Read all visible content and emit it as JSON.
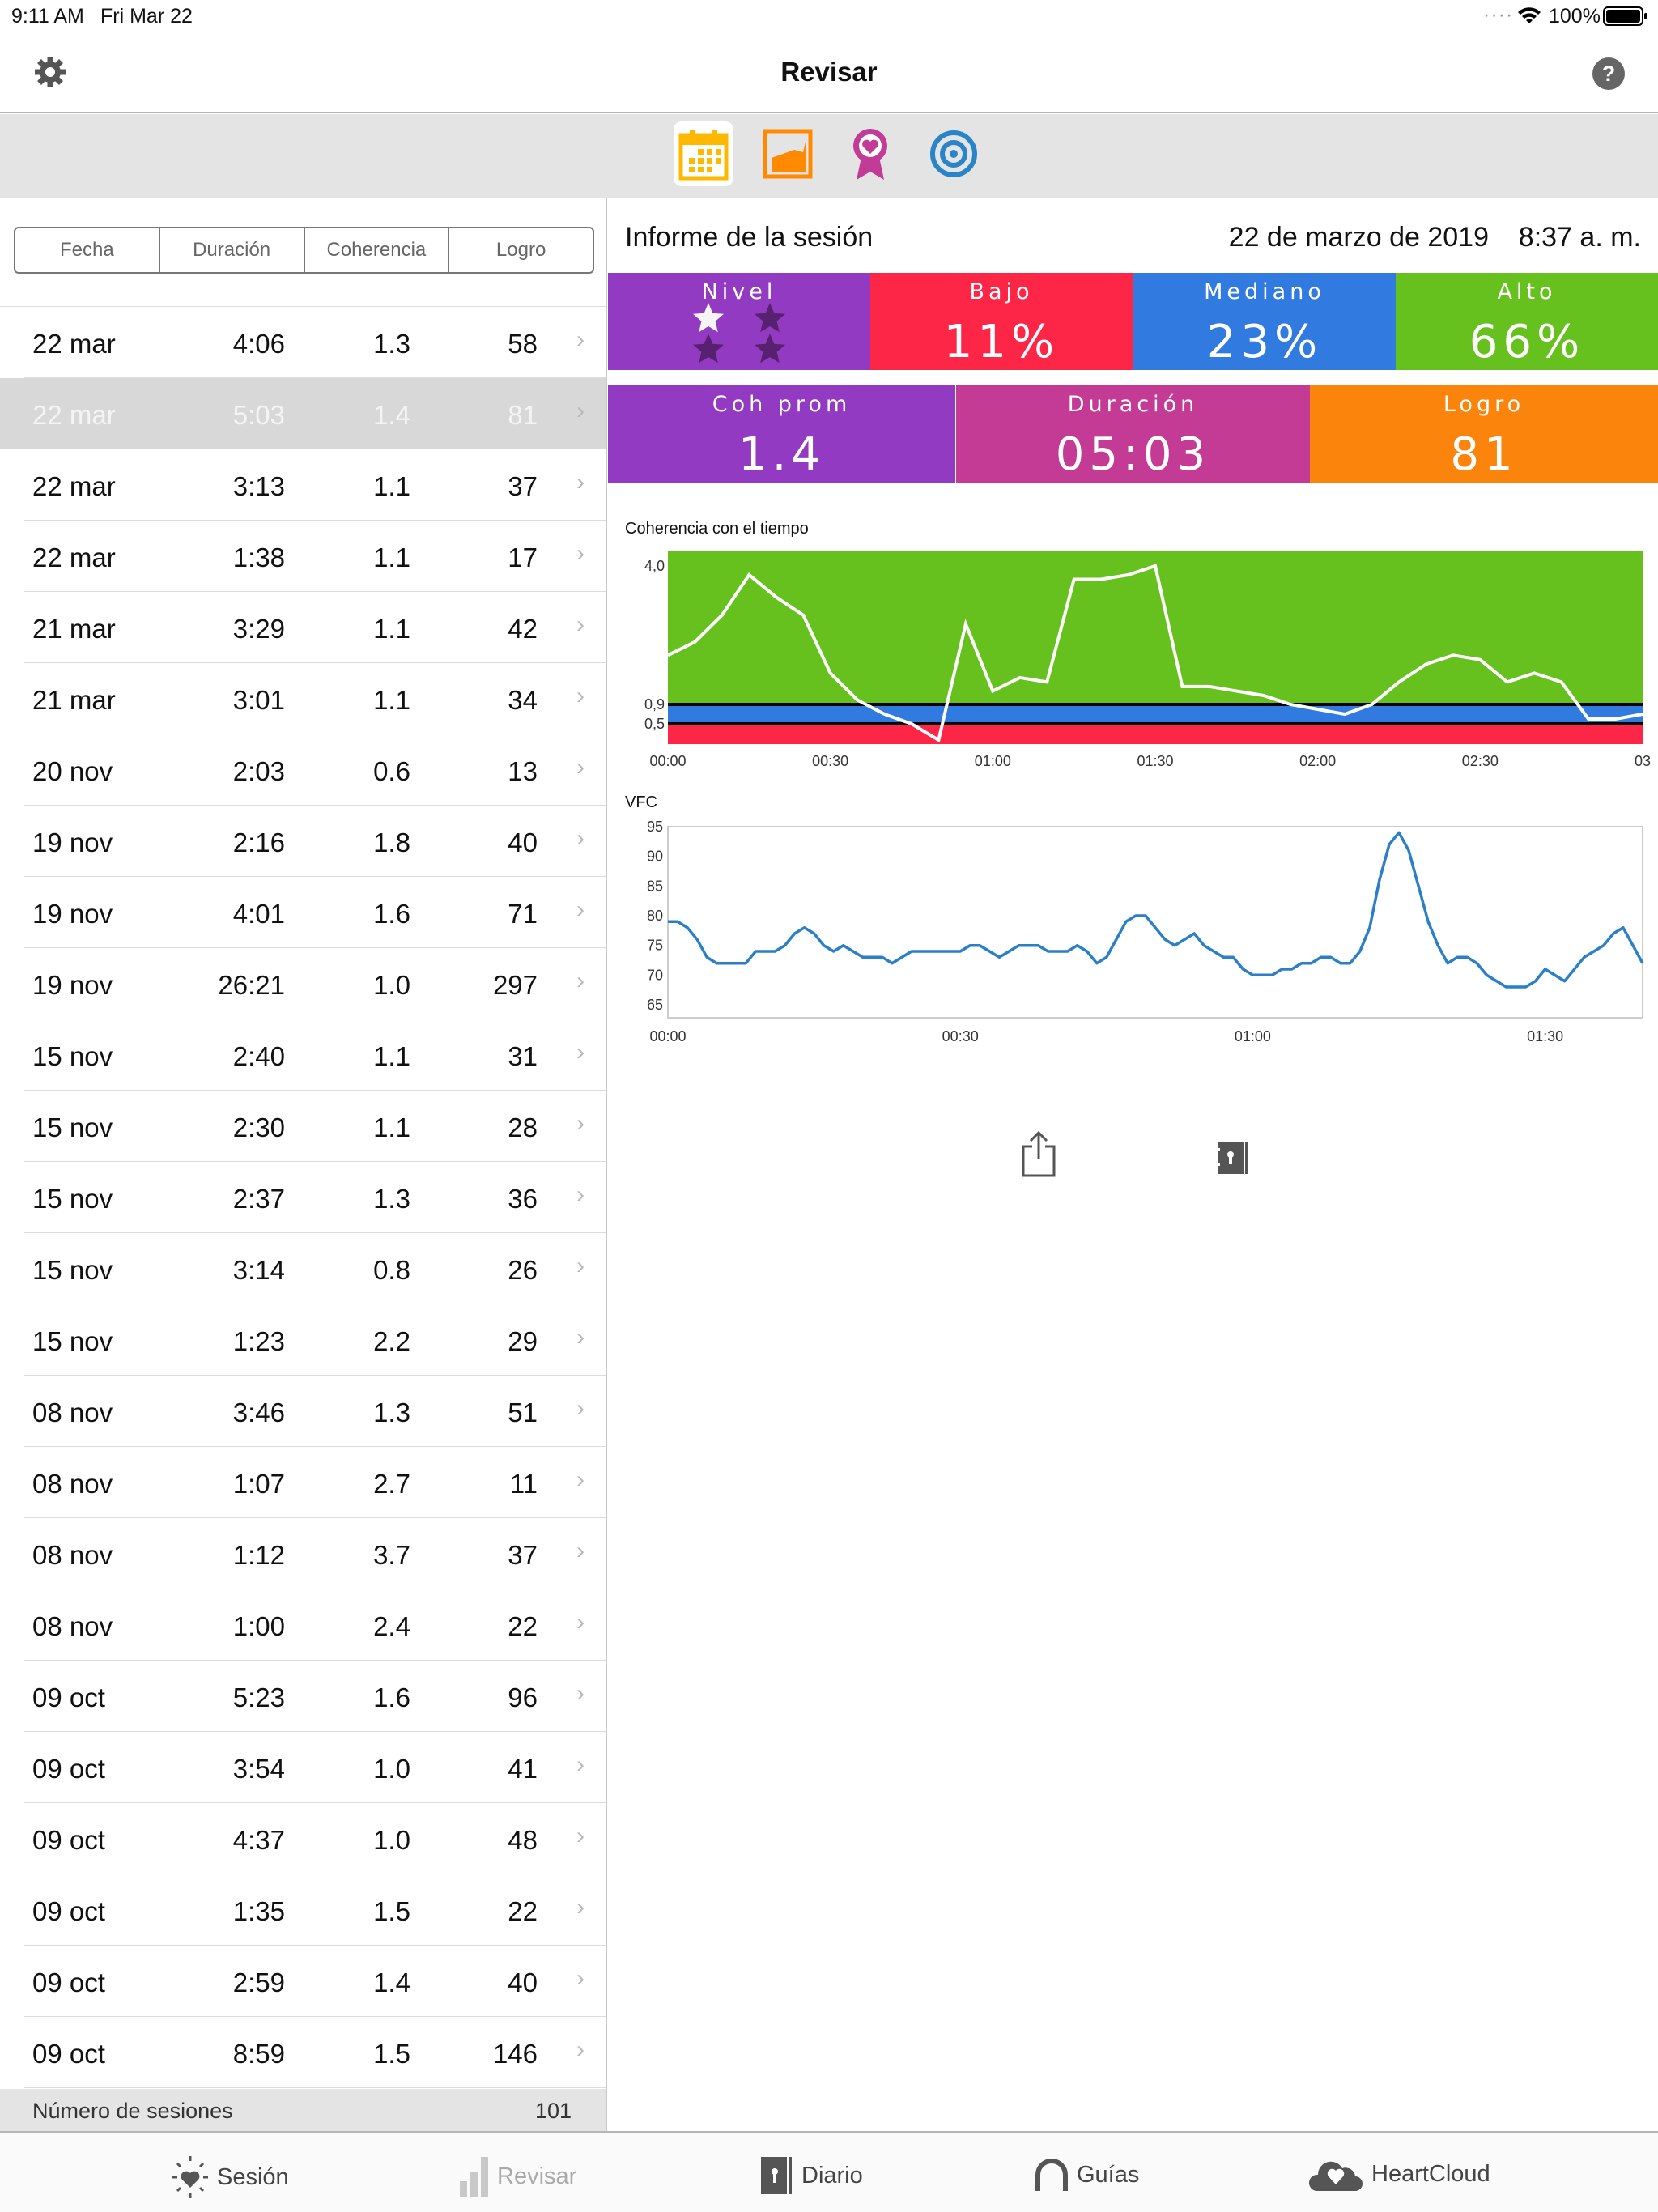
{
  "status_bar": {
    "time": "9:11 AM",
    "date": "Fri Mar 22",
    "battery": "100%"
  },
  "nav": {
    "title": "Revisar",
    "left_icon": "gear-icon",
    "right_icon": "help-icon"
  },
  "segment_icons": [
    {
      "name": "calendar-icon",
      "color": "#ffb800",
      "selected": true
    },
    {
      "name": "area-chart-icon",
      "color": "#ff8a00"
    },
    {
      "name": "award-ribbon-icon",
      "color": "#c23b96"
    },
    {
      "name": "target-icon",
      "color": "#2a84c8"
    }
  ],
  "list": {
    "headers": [
      "Fecha",
      "Duración",
      "Coherencia",
      "Logro"
    ],
    "rows": [
      {
        "date": "22 mar",
        "duration": "4:06",
        "coherence": "1.3",
        "score": "58"
      },
      {
        "date": "22 mar",
        "duration": "5:03",
        "coherence": "1.4",
        "score": "81",
        "selected": true
      },
      {
        "date": "22 mar",
        "duration": "3:13",
        "coherence": "1.1",
        "score": "37"
      },
      {
        "date": "22 mar",
        "duration": "1:38",
        "coherence": "1.1",
        "score": "17"
      },
      {
        "date": "21 mar",
        "duration": "3:29",
        "coherence": "1.1",
        "score": "42"
      },
      {
        "date": "21 mar",
        "duration": "3:01",
        "coherence": "1.1",
        "score": "34"
      },
      {
        "date": "20 nov",
        "duration": "2:03",
        "coherence": "0.6",
        "score": "13"
      },
      {
        "date": "19 nov",
        "duration": "2:16",
        "coherence": "1.8",
        "score": "40"
      },
      {
        "date": "19 nov",
        "duration": "4:01",
        "coherence": "1.6",
        "score": "71"
      },
      {
        "date": "19 nov",
        "duration": "26:21",
        "coherence": "1.0",
        "score": "297"
      },
      {
        "date": "15 nov",
        "duration": "2:40",
        "coherence": "1.1",
        "score": "31"
      },
      {
        "date": "15 nov",
        "duration": "2:30",
        "coherence": "1.1",
        "score": "28"
      },
      {
        "date": "15 nov",
        "duration": "2:37",
        "coherence": "1.3",
        "score": "36"
      },
      {
        "date": "15 nov",
        "duration": "3:14",
        "coherence": "0.8",
        "score": "26"
      },
      {
        "date": "15 nov",
        "duration": "1:23",
        "coherence": "2.2",
        "score": "29"
      },
      {
        "date": "08 nov",
        "duration": "3:46",
        "coherence": "1.3",
        "score": "51"
      },
      {
        "date": "08 nov",
        "duration": "1:07",
        "coherence": "2.7",
        "score": "11"
      },
      {
        "date": "08 nov",
        "duration": "1:12",
        "coherence": "3.7",
        "score": "37"
      },
      {
        "date": "08 nov",
        "duration": "1:00",
        "coherence": "2.4",
        "score": "22"
      },
      {
        "date": "09 oct",
        "duration": "5:23",
        "coherence": "1.6",
        "score": "96"
      },
      {
        "date": "09 oct",
        "duration": "3:54",
        "coherence": "1.0",
        "score": "41"
      },
      {
        "date": "09 oct",
        "duration": "4:37",
        "coherence": "1.0",
        "score": "48"
      },
      {
        "date": "09 oct",
        "duration": "1:35",
        "coherence": "1.5",
        "score": "22"
      },
      {
        "date": "09 oct",
        "duration": "2:59",
        "coherence": "1.4",
        "score": "40"
      },
      {
        "date": "09 oct",
        "duration": "8:59",
        "coherence": "1.5",
        "score": "146"
      }
    ],
    "footer_label": "Número de sesiones",
    "footer_count": "101"
  },
  "report": {
    "title": "Informe de la sesión",
    "date": "22 de marzo de 2019",
    "time": "8:37 a. m.",
    "level": {
      "label": "Nivel",
      "stars_filled": 1,
      "stars_total": 4,
      "color": "#923bc2"
    },
    "low": {
      "label": "Bajo",
      "value": "11%",
      "color": "#fd2646"
    },
    "medium": {
      "label": "Mediano",
      "value": "23%",
      "color": "#317ae0"
    },
    "high": {
      "label": "Alto",
      "value": "66%",
      "color": "#66c11f"
    },
    "avg_coherence": {
      "label": "Coh prom",
      "value": "1.4",
      "color": "#923bc2"
    },
    "duration": {
      "label": "Duración",
      "value": "05:03",
      "color": "#c43b96"
    },
    "score": {
      "label": "Logro",
      "value": "81",
      "color": "#fb840c"
    }
  },
  "chart_data": [
    {
      "type": "line",
      "title": "Coherencia con el tiempo",
      "x_unit": "seconds",
      "x": [
        0,
        5,
        10,
        15,
        20,
        25,
        30,
        35,
        40,
        45,
        50,
        55,
        60,
        65,
        70,
        75,
        80,
        85,
        90,
        95,
        100,
        105,
        110,
        115,
        120,
        125,
        130,
        135,
        140,
        145,
        150,
        155,
        160,
        165,
        170,
        175,
        180
      ],
      "y": [
        2.0,
        2.3,
        2.9,
        3.8,
        3.3,
        2.9,
        1.6,
        1.0,
        0.7,
        0.5,
        0.1,
        2.7,
        1.2,
        1.5,
        1.4,
        3.7,
        3.7,
        3.8,
        4.0,
        1.3,
        1.3,
        1.2,
        1.1,
        0.9,
        0.8,
        0.7,
        0.9,
        1.4,
        1.8,
        2.0,
        1.9,
        1.4,
        1.6,
        1.4,
        0.6,
        0.6,
        0.7
      ],
      "y_ticks": [
        "4,0",
        "0,9",
        "0,5"
      ],
      "x_ticks": [
        "00:00",
        "00:30",
        "01:00",
        "01:30",
        "02:00",
        "02:30",
        "03"
      ],
      "xlim": [
        0,
        180
      ],
      "bands": [
        {
          "from": 0.9,
          "to": 4.0,
          "color": "#66c11f"
        },
        {
          "from": 0.5,
          "to": 0.9,
          "color": "#317ae0"
        },
        {
          "from": 0,
          "to": 0.5,
          "color": "#fd2646"
        }
      ],
      "line_color": "#ffffff"
    },
    {
      "type": "line",
      "title": "VFC",
      "x_unit": "seconds",
      "x": [
        0,
        1,
        2,
        3,
        4,
        5,
        6,
        8,
        9,
        11,
        12,
        13,
        14,
        15,
        16,
        17,
        18,
        19,
        20,
        22,
        23,
        25,
        30,
        31,
        32,
        34,
        36,
        38,
        39,
        41,
        42,
        43,
        44,
        45,
        47,
        48,
        49,
        51,
        52,
        54,
        55,
        57,
        58,
        59,
        60,
        62,
        63,
        64,
        65,
        66,
        67,
        68,
        69,
        70,
        71,
        72,
        73,
        74,
        75,
        76,
        77,
        78,
        79,
        80,
        81,
        82,
        83,
        84,
        86,
        88,
        89,
        90,
        92,
        94,
        96,
        97,
        98,
        99,
        100
      ],
      "y": [
        79,
        79,
        78,
        76,
        73,
        72,
        72,
        72,
        74,
        74,
        75,
        77,
        78,
        77,
        75,
        74,
        75,
        74,
        73,
        73,
        72,
        74,
        74,
        75,
        75,
        73,
        75,
        75,
        74,
        74,
        75,
        74,
        72,
        73,
        79,
        80,
        80,
        76,
        75,
        77,
        75,
        73,
        73,
        71,
        70,
        70,
        71,
        71,
        72,
        72,
        73,
        73,
        72,
        72,
        74,
        78,
        86,
        92,
        94,
        91,
        85,
        79,
        75,
        72,
        73,
        73,
        72,
        70,
        68,
        68,
        69,
        71,
        69,
        73,
        75,
        77,
        78,
        75,
        72
      ],
      "y_ticks": [
        "95",
        "90",
        "85",
        "80",
        "75",
        "70",
        "65"
      ],
      "ylim": [
        62,
        95
      ],
      "x_ticks": [
        "00:00",
        "00:30",
        "01:00",
        "01:30"
      ],
      "xlim": [
        0,
        100
      ],
      "line_color": "#2a7fc8"
    }
  ],
  "actions": {
    "share_icon": "share-icon",
    "journal_icon": "journal-icon"
  },
  "tabs": [
    {
      "label": "Sesión",
      "icon": "heart-burst-icon"
    },
    {
      "label": "Revisar",
      "icon": "bar-chart-icon",
      "active": true
    },
    {
      "label": "Diario",
      "icon": "journal-icon"
    },
    {
      "label": "Guías",
      "icon": "headphones-icon"
    },
    {
      "label": "HeartCloud",
      "icon": "cloud-heart-icon"
    }
  ]
}
